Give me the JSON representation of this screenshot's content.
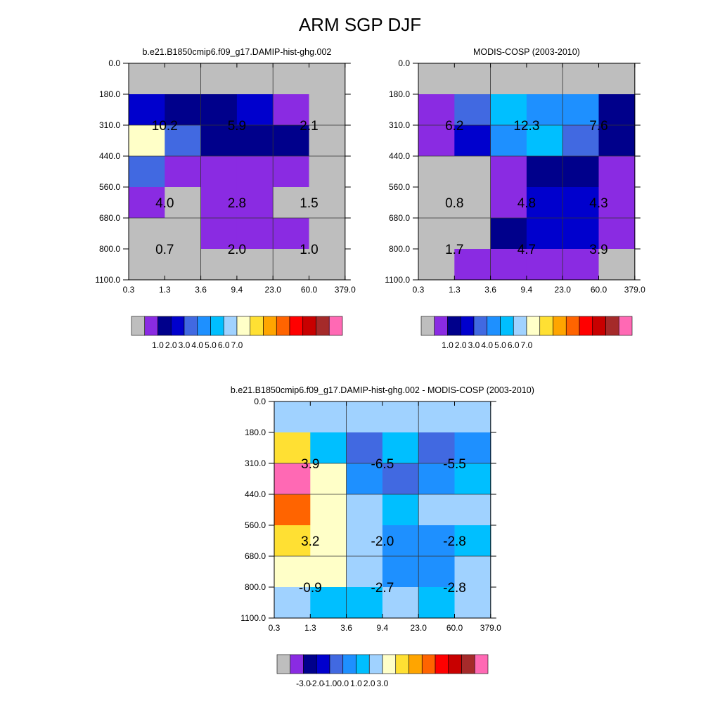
{
  "title": "ARM SGP DJF",
  "x_ticks": [
    "0.3",
    "1.3",
    "3.6",
    "9.4",
    "23.0",
    "60.0",
    "379.0"
  ],
  "y_ticks": [
    "0.0",
    "180.0",
    "310.0",
    "440.0",
    "560.0",
    "680.0",
    "800.0",
    "1100.0"
  ],
  "palette_abs": [
    "#bebebe",
    "#8a2be2",
    "#00008b",
    "#0000cd",
    "#4169e1",
    "#1e90ff",
    "#00bfff",
    "#a0d2ff",
    "#ffffc8",
    "#ffe033",
    "#ffa500",
    "#ff6400",
    "#ff0000",
    "#c80000",
    "#a52a2a",
    "#ff69b4"
  ],
  "palette_diff": [
    "#bebebe",
    "#8a2be2",
    "#00008b",
    "#0000cd",
    "#4169e1",
    "#1e90ff",
    "#00bfff",
    "#a0d2ff",
    "#ffffc8",
    "#ffe033",
    "#ffa500",
    "#ff6400",
    "#ff0000",
    "#c80000",
    "#a52a2a",
    "#ff69b4"
  ],
  "chart_data": [
    {
      "type": "heatmap",
      "title": "b.e21.B1850cmip6.f09_g17.DAMIP-hist-ghg.002",
      "palette": "palette_abs",
      "cells": [
        [
          0,
          0,
          0,
          0,
          0,
          0
        ],
        [
          3,
          2,
          2,
          3,
          1,
          0
        ],
        [
          8,
          4,
          2,
          2,
          2,
          0
        ],
        [
          4,
          1,
          1,
          1,
          1,
          0
        ],
        [
          1,
          0,
          1,
          1,
          0,
          0
        ],
        [
          0,
          0,
          1,
          1,
          1,
          0
        ],
        [
          0,
          0,
          0,
          0,
          0,
          0
        ]
      ],
      "labels": [
        [
          "10.2",
          "5.9",
          "2.1"
        ],
        [
          "4.0",
          "2.8",
          "1.5"
        ],
        [
          "0.7",
          "2.0",
          "1.0"
        ]
      ],
      "colorbar_labels": [
        "1.0",
        "2.0",
        "3.0",
        "4.0",
        "5.0",
        "6.0",
        "7.0"
      ]
    },
    {
      "type": "heatmap",
      "title": "MODIS-COSP (2003-2010)",
      "palette": "palette_abs",
      "cells": [
        [
          0,
          0,
          0,
          0,
          0,
          0
        ],
        [
          1,
          4,
          6,
          5,
          5,
          2
        ],
        [
          1,
          3,
          5,
          6,
          4,
          2
        ],
        [
          0,
          0,
          1,
          2,
          2,
          1
        ],
        [
          0,
          0,
          1,
          3,
          3,
          1
        ],
        [
          0,
          0,
          2,
          3,
          3,
          1
        ],
        [
          0,
          1,
          1,
          1,
          1,
          0
        ]
      ],
      "labels": [
        [
          "6.2",
          "12.3",
          "7.6"
        ],
        [
          "0.8",
          "4.8",
          "4.3"
        ],
        [
          "1.7",
          "4.7",
          "3.9"
        ]
      ],
      "colorbar_labels": [
        "1.0",
        "2.0",
        "3.0",
        "4.0",
        "5.0",
        "6.0",
        "7.0"
      ]
    },
    {
      "type": "heatmap",
      "title": "b.e21.B1850cmip6.f09_g17.DAMIP-hist-ghg.002 - MODIS-COSP (2003-2010)",
      "palette": "palette_diff",
      "cells": [
        [
          7,
          7,
          7,
          7,
          7,
          7
        ],
        [
          9,
          6,
          4,
          6,
          4,
          5
        ],
        [
          15,
          8,
          5,
          4,
          5,
          6
        ],
        [
          11,
          8,
          7,
          6,
          7,
          7
        ],
        [
          9,
          8,
          7,
          5,
          5,
          6
        ],
        [
          8,
          8,
          7,
          5,
          5,
          7
        ],
        [
          7,
          6,
          6,
          7,
          6,
          7
        ]
      ],
      "labels": [
        [
          "3.9",
          "-6.5",
          "-5.5"
        ],
        [
          "3.2",
          "-2.0",
          "-2.8"
        ],
        [
          "-0.9",
          "-2.7",
          "-2.8"
        ]
      ],
      "colorbar_labels": [
        "-3.0",
        "-2.0",
        "-1.0",
        "0.0",
        "1.0",
        "2.0",
        "3.0"
      ]
    }
  ]
}
